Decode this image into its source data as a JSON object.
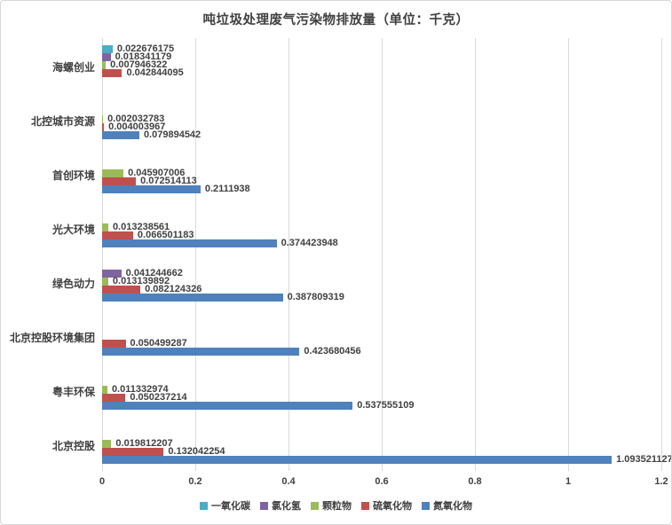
{
  "chart_data": {
    "type": "bar",
    "orientation": "horizontal",
    "title": "吨垃圾处理废气污染物排放量（单位：千克）",
    "categories": [
      "海螺创业",
      "北控城市资源",
      "首创环境",
      "光大环境",
      "绿色动力",
      "北京控股环境集团",
      "粤丰环保",
      "北京控股"
    ],
    "series": [
      {
        "name": "一氧化碳",
        "color": "#4BACC6",
        "values": [
          0.022676175,
          null,
          null,
          null,
          null,
          null,
          null,
          null
        ]
      },
      {
        "name": "氯化氢",
        "color": "#8064A2",
        "values": [
          0.018341179,
          null,
          null,
          null,
          0.041244662,
          null,
          null,
          null
        ]
      },
      {
        "name": "颗粒物",
        "color": "#9BBB59",
        "values": [
          0.007946322,
          0.002032783,
          0.045907006,
          0.013238561,
          0.013139892,
          null,
          0.011332974,
          0.019812207
        ]
      },
      {
        "name": "硫氧化物",
        "color": "#C0504D",
        "values": [
          0.042844095,
          0.004003967,
          0.072514113,
          0.066501183,
          0.082124326,
          0.050499287,
          0.050237214,
          0.132042254
        ]
      },
      {
        "name": "氮氧化物",
        "color": "#4F81BD",
        "values": [
          null,
          0.079894542,
          0.2111938,
          0.374423948,
          0.387809319,
          0.423680456,
          0.537555109,
          1.093521127
        ]
      }
    ],
    "x_ticks": [
      0,
      0.2,
      0.4,
      0.6,
      0.8,
      1,
      1.2
    ],
    "xlim": [
      0,
      1.2
    ],
    "grid": true,
    "legend_position": "bottom",
    "text_color": "#404040",
    "gridline_color": "#d9d9d9"
  }
}
